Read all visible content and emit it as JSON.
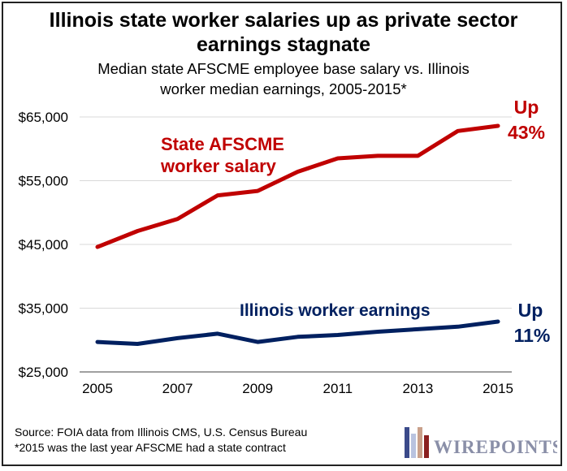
{
  "title": {
    "line1": "Illinois state worker salaries up as private sector",
    "line2": "earnings stagnate"
  },
  "subtitle": {
    "line1": "Median state AFSCME employee base salary vs. Illinois",
    "line2": "worker median earnings, 2005-2015*"
  },
  "source": {
    "line1": "Source: FOIA data from Illinois CMS, U.S. Census Bureau",
    "line2": "*2015 was the last year AFSCME had a state contract"
  },
  "logo": {
    "text": "WIREPOINTS"
  },
  "colors": {
    "afscme": "#c00000",
    "illinois": "#002060",
    "axis": "#808080",
    "grid": "#d9d9d9"
  },
  "chart_data": {
    "type": "line",
    "title": "Illinois state worker salaries up as private sector earnings stagnate",
    "subtitle": "Median state AFSCME employee base salary vs. Illinois worker median earnings, 2005-2015*",
    "x": [
      2005,
      2006,
      2007,
      2008,
      2009,
      2010,
      2011,
      2012,
      2013,
      2014,
      2015
    ],
    "x_tick_labels": [
      "2005",
      "2007",
      "2009",
      "2011",
      "2013",
      "2015"
    ],
    "y_tick_labels": [
      "$25,000",
      "$35,000",
      "$45,000",
      "$55,000",
      "$65,000"
    ],
    "ylim": [
      25000,
      65000
    ],
    "grid": true,
    "series": [
      {
        "name": "State AFSCME worker salary",
        "label_line1": "State AFSCME",
        "label_line2": "worker salary",
        "change_line1": "Up",
        "change_line2": "43%",
        "values": [
          44600,
          47100,
          49000,
          52700,
          53400,
          56400,
          58500,
          58900,
          58900,
          62800,
          63600
        ]
      },
      {
        "name": "Illinois worker earnings",
        "label_line1": "Illinois worker earnings",
        "change_line1": "Up",
        "change_line2": "11%",
        "values": [
          29700,
          29400,
          30300,
          31000,
          29700,
          30500,
          30800,
          31300,
          31700,
          32100,
          32900
        ]
      }
    ]
  }
}
